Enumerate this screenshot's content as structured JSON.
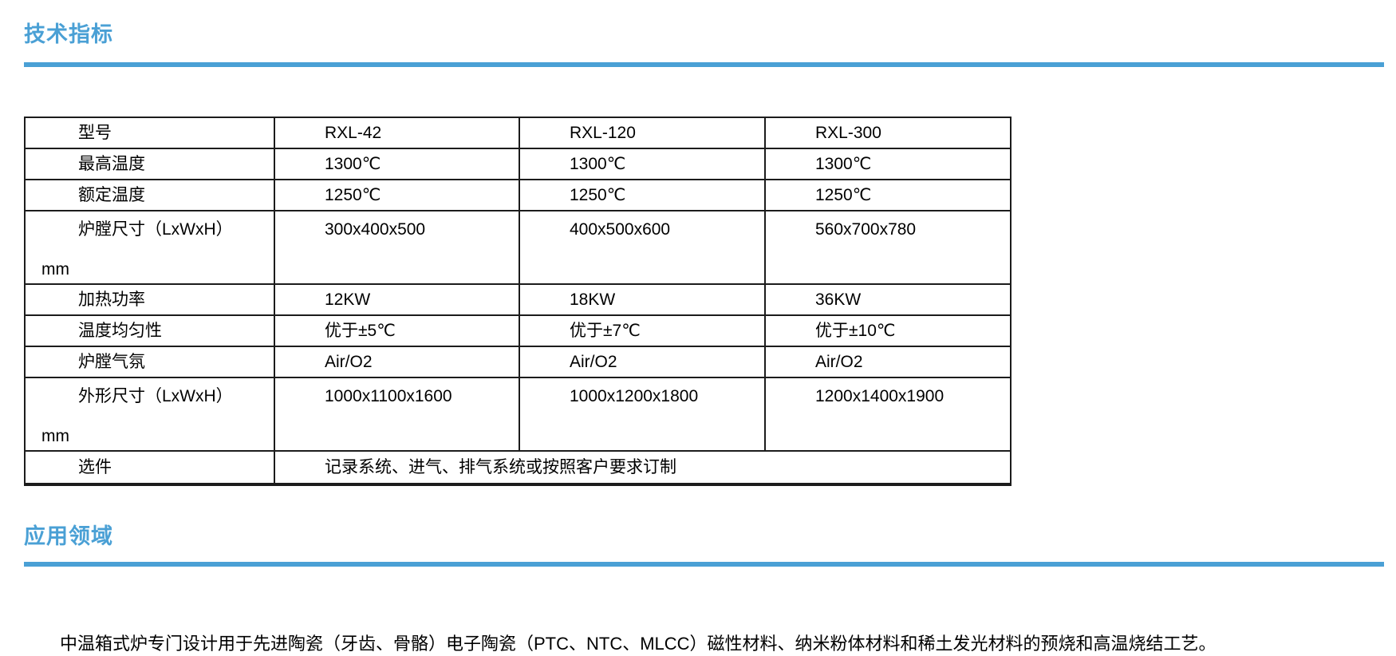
{
  "colors": {
    "accent": "#4aa0d5",
    "table_border": "#1c1c1c"
  },
  "spec_section": {
    "title": "技术指标"
  },
  "spec_table": {
    "rows": [
      {
        "label": "型号",
        "values": [
          "RXL-42",
          "RXL-120",
          "RXL-300"
        ]
      },
      {
        "label": "最高温度",
        "values": [
          "1300℃",
          "1300℃",
          "1300℃"
        ]
      },
      {
        "label": "额定温度",
        "values": [
          "1250℃",
          "1250℃",
          "1250℃"
        ]
      },
      {
        "label": "炉膛尺寸（LxWxH）",
        "label_unit": "mm",
        "values": [
          "300x400x500",
          "400x500x600",
          "560x700x780"
        ]
      },
      {
        "label": "加热功率",
        "values": [
          "12KW",
          "18KW",
          "36KW"
        ]
      },
      {
        "label": "温度均匀性",
        "values": [
          "优于±5℃",
          "优于±7℃",
          "优于±10℃"
        ]
      },
      {
        "label": "炉膛气氛",
        "values": [
          "Air/O2",
          "Air/O2",
          "Air/O2"
        ]
      },
      {
        "label": "外形尺寸（LxWxH）",
        "label_unit": "mm",
        "values": [
          "1000x1100x1600",
          "1000x1200x1800",
          "1200x1400x1900"
        ]
      },
      {
        "label": "选件",
        "values": [
          "记录系统、进气、排气系统或按照客户要求订制"
        ]
      }
    ]
  },
  "application_section": {
    "title": "应用领域",
    "text": "中温箱式炉专门设计用于先进陶瓷（牙齿、骨骼）电子陶瓷（PTC、NTC、MLCC）磁性材料、纳米粉体材料和稀土发光材料的预烧和高温烧结工艺。"
  }
}
